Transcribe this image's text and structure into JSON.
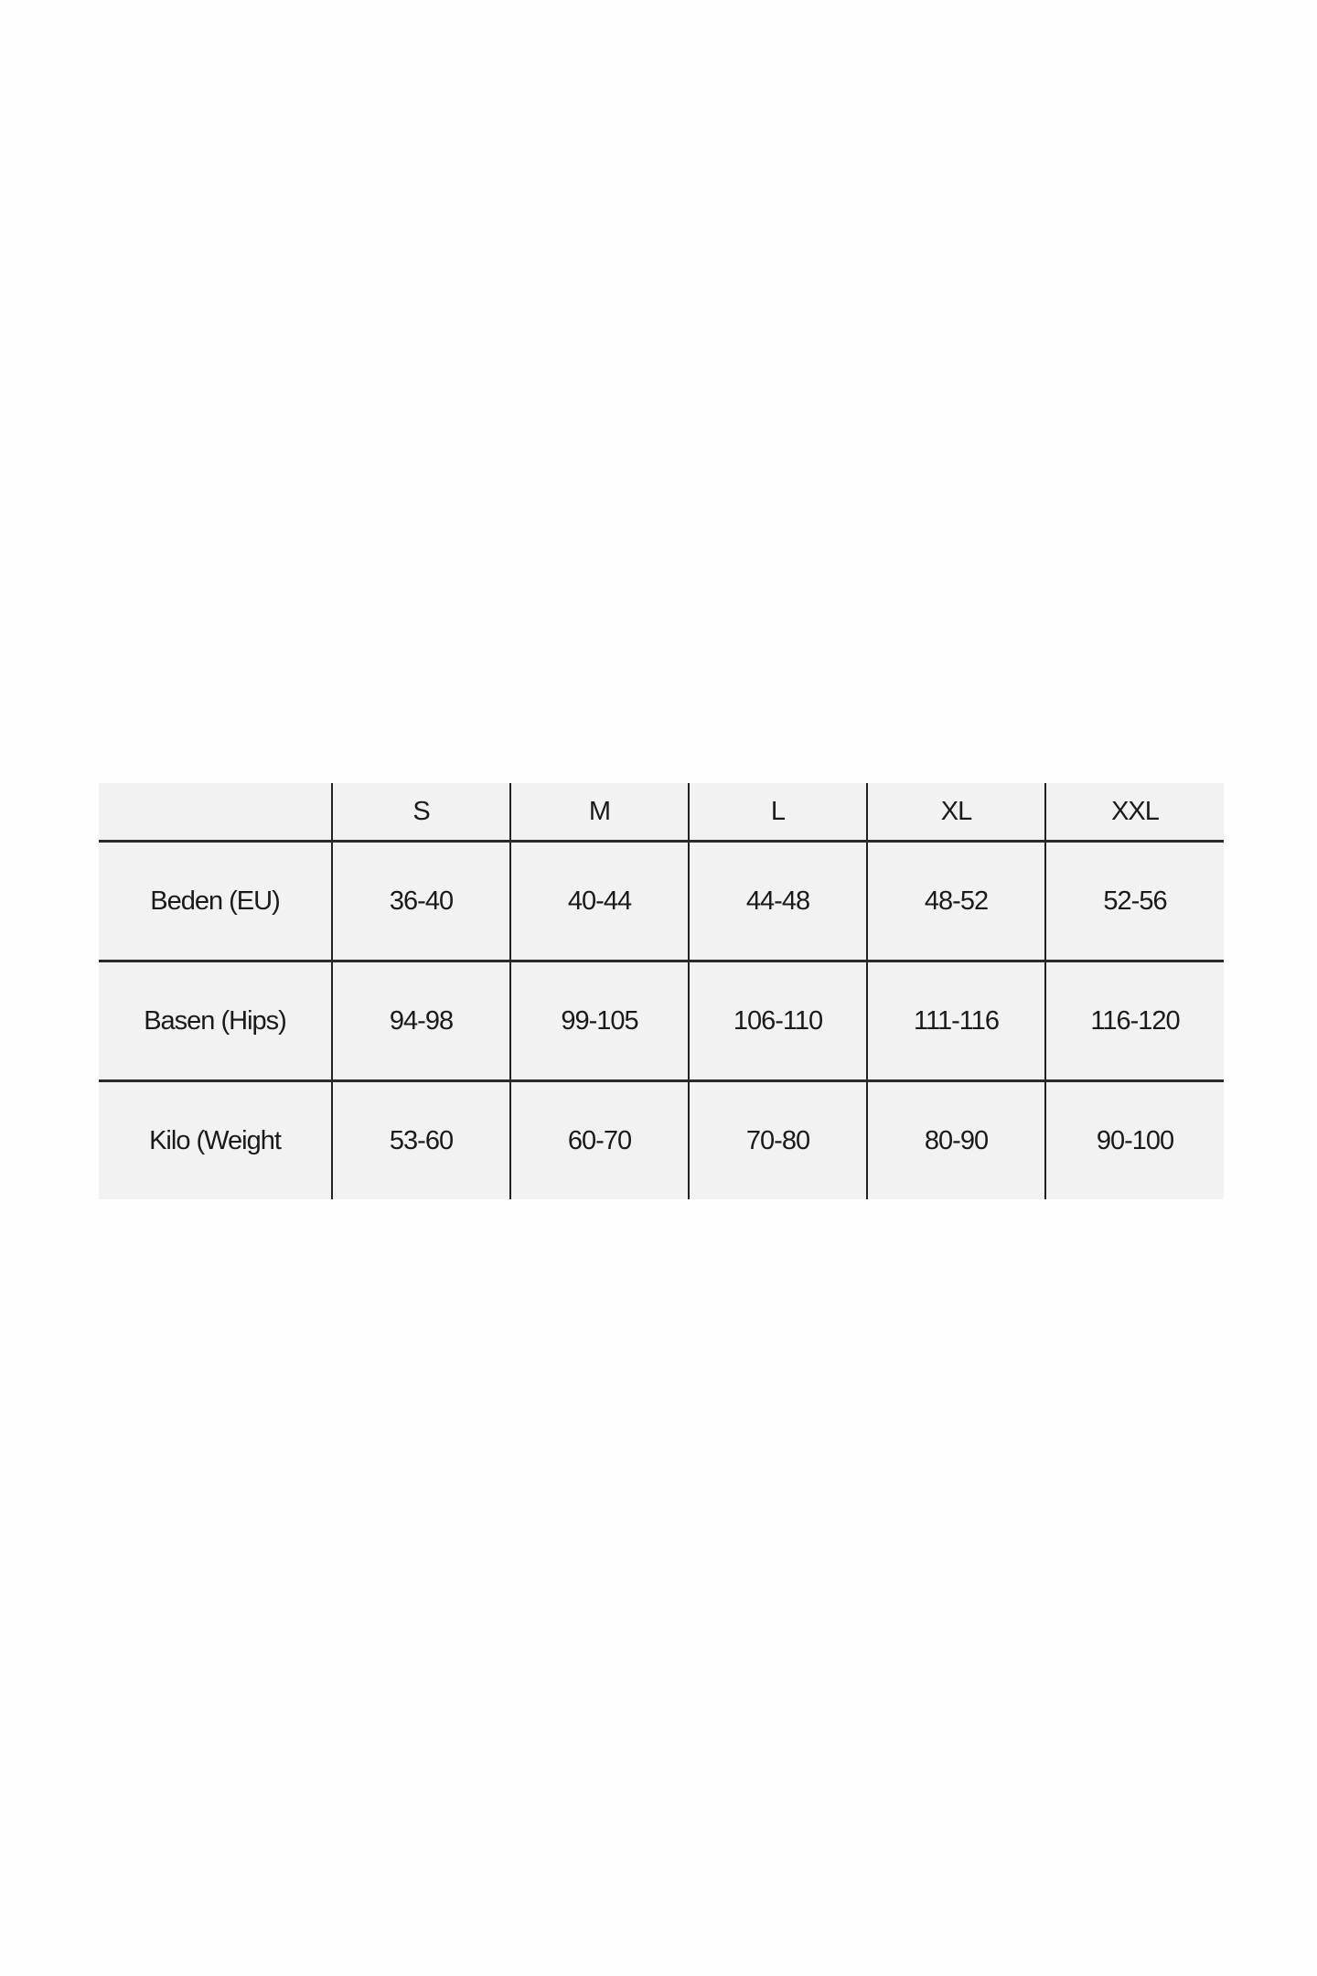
{
  "size_chart": {
    "header": [
      "",
      "S",
      "M",
      "L",
      "XL",
      "XXL"
    ],
    "rows": [
      {
        "label": "Beden (EU)",
        "values": [
          "36-40",
          "40-44",
          "44-48",
          "48-52",
          "52-56"
        ]
      },
      {
        "label": "Basen (Hips)",
        "values": [
          "94-98",
          "99-105",
          "106-110",
          "111-116",
          "116-120"
        ]
      },
      {
        "label": "Kilo (Weight",
        "values": [
          "53-60",
          "60-70",
          "70-80",
          "80-90",
          "90-100"
        ]
      }
    ]
  }
}
